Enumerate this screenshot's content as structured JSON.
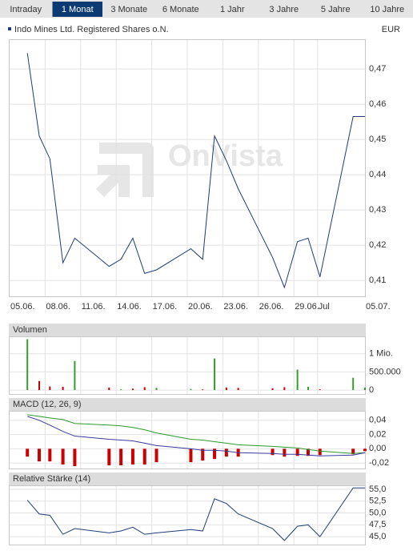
{
  "tabs": {
    "items": [
      "Intraday",
      "1 Monat",
      "3 Monate",
      "6 Monate",
      "1 Jahr",
      "3 Jahre",
      "5 Jahre",
      "10 Jahre"
    ],
    "active": 1
  },
  "instrument": {
    "name": "Indo Mines Ltd. Registered Shares o.N.",
    "currency": "EUR"
  },
  "chart_data": [
    {
      "type": "line",
      "watermark": "OnVista",
      "x": [
        1.5,
        2.5,
        3.4,
        4.5,
        5.5,
        8.4,
        9.4,
        10.4,
        11.4,
        12.4,
        15.3,
        16.3,
        17.3,
        18.3,
        19.3,
        22.2,
        23.2,
        24.3,
        25.2,
        26.2,
        29,
        30
      ],
      "xlim": [
        0,
        30
      ],
      "xticks": [
        {
          "value": 0,
          "label": "05.06."
        },
        {
          "value": 3,
          "label": "08.06."
        },
        {
          "value": 6,
          "label": "11.06."
        },
        {
          "value": 9,
          "label": "14.06."
        },
        {
          "value": 12,
          "label": "17.06."
        },
        {
          "value": 15,
          "label": "20.06."
        },
        {
          "value": 18,
          "label": "23.06."
        },
        {
          "value": 21,
          "label": "26.06."
        },
        {
          "value": 24,
          "label": "29.06."
        },
        {
          "value": 26,
          "label": "Jul"
        },
        {
          "value": 30,
          "label": "05.07."
        }
      ],
      "ylim": [
        0.4055,
        0.4782
      ],
      "yticks": [
        {
          "value": 0.41,
          "label": "0,41"
        },
        {
          "value": 0.42,
          "label": "0,42"
        },
        {
          "value": 0.43,
          "label": "0,43"
        },
        {
          "value": 0.44,
          "label": "0,44"
        },
        {
          "value": 0.45,
          "label": "0,45"
        },
        {
          "value": 0.46,
          "label": "0,46"
        },
        {
          "value": 0.47,
          "label": "0,47"
        }
      ],
      "grid": true,
      "series": [
        {
          "color": "#1d3c78",
          "values": [
            0.4745,
            0.451,
            0.4445,
            0.415,
            0.422,
            0.414,
            0.416,
            0.422,
            0.412,
            0.413,
            0.419,
            0.416,
            0.451,
            0.444,
            0.436,
            0.4165,
            0.408,
            0.421,
            0.422,
            0.411,
            0.4565,
            0.4565
          ]
        }
      ]
    },
    {
      "type": "bar",
      "title": "Volumen",
      "x": [
        1.5,
        2.5,
        3.4,
        4.5,
        5.5,
        8.4,
        9.4,
        10.4,
        11.4,
        12.4,
        15.3,
        16.3,
        17.3,
        18.3,
        19.3,
        22.2,
        23.2,
        24.3,
        25.2,
        26.2,
        29,
        30
      ],
      "xlim": [
        0,
        30
      ],
      "ylim": [
        -108700,
        1456500
      ],
      "yticks": [
        0,
        {
          "value": 500000,
          "label": "500.000"
        },
        {
          "value": 1000000,
          "label": "1 Mio."
        }
      ],
      "grid": true,
      "series": [
        {
          "values": [
            1400000,
            250000,
            100000,
            90000,
            800000,
            70000,
            20000,
            40000,
            80000,
            60000,
            30000,
            20000,
            870000,
            70000,
            60000,
            50000,
            80000,
            565000,
            90000,
            20000,
            340000,
            70000
          ],
          "colors": [
            "#33a02c",
            "#cc0000",
            "#cc0000",
            "#cc0000",
            "#33a02c",
            "#cc0000",
            "#33a02c",
            "#cc0000",
            "#cc0000",
            "#33a02c",
            "#33a02c",
            "#cc0000",
            "#33a02c",
            "#cc0000",
            "#cc0000",
            "#cc0000",
            "#cc0000",
            "#33a02c",
            "#33a02c",
            "#cc0000",
            "#33a02c",
            "#33a02c"
          ]
        }
      ]
    },
    {
      "type": "combo",
      "title": "MACD (12, 26, 9)",
      "x": [
        1.5,
        2.5,
        3.4,
        4.5,
        5.5,
        8.4,
        9.4,
        10.4,
        11.4,
        12.4,
        15.3,
        16.3,
        17.3,
        18.3,
        19.3,
        22.2,
        23.2,
        24.3,
        25.2,
        26.2,
        29,
        30
      ],
      "xlim": [
        0,
        30
      ],
      "ylim": [
        -0.0278,
        0.0522
      ],
      "yticks": [
        {
          "value": -0.02,
          "label": "-0,02"
        },
        {
          "value": 0,
          "label": "0,00"
        },
        {
          "value": 0.02,
          "label": "0,02"
        },
        {
          "value": 0.04,
          "label": "0,04"
        }
      ],
      "grid": true,
      "series": [
        {
          "type": "bar",
          "color": "#cc0000",
          "values": [
            -0.0111,
            -0.0178,
            -0.0178,
            -0.0222,
            -0.0244,
            -0.0233,
            -0.0233,
            -0.0222,
            -0.0222,
            -0.0189,
            -0.0189,
            -0.0167,
            -0.0144,
            -0.0111,
            -0.0111,
            -0.0089,
            -0.0111,
            -0.01,
            -0.01,
            -0.0089,
            -0.0078,
            -0.0033
          ]
        },
        {
          "type": "line",
          "color": "#2e9a2e",
          "values": [
            0.0478,
            0.0456,
            0.0433,
            0.0411,
            0.0356,
            0.0333,
            0.0322,
            0.03,
            0.0267,
            0.0222,
            0.0133,
            0.0122,
            0.01,
            0.0078,
            0.0056,
            0.0033,
            0.0022,
            0.0011,
            -0.0011,
            -0.0033,
            -0.0067,
            -0.0056
          ]
        },
        {
          "type": "line",
          "color": "#3a3aa0",
          "values": [
            0.0456,
            0.04,
            0.0333,
            0.0244,
            0.0178,
            0.0133,
            0.0122,
            0.0111,
            0.0078,
            0.0044,
            0,
            -0.0022,
            -0.0022,
            -0.0033,
            -0.0056,
            -0.0067,
            -0.0078,
            -0.0078,
            -0.0089,
            -0.01,
            -0.0089,
            -0.0056
          ]
        }
      ]
    },
    {
      "type": "line",
      "title": "Relative Stärke (14)",
      "x": [
        1.5,
        2.5,
        3.4,
        4.5,
        5.5,
        8.4,
        9.4,
        10.4,
        11.4,
        12.4,
        15.3,
        16.3,
        17.3,
        18.3,
        19.3,
        22.2,
        23.2,
        24.3,
        25.2,
        26.2,
        29,
        30
      ],
      "xlim": [
        0,
        30
      ],
      "ylim": [
        43.33,
        55.67
      ],
      "yticks": [
        {
          "value": 45,
          "label": "45,0"
        },
        {
          "value": 47.5,
          "label": "47,5"
        },
        {
          "value": 50,
          "label": "50,0"
        },
        {
          "value": 52.5,
          "label": "52,5"
        },
        {
          "value": 55,
          "label": "55,0"
        }
      ],
      "grid": true,
      "series": [
        {
          "color": "#1d3c78",
          "values": [
            52.7,
            49.8,
            49.5,
            45.5,
            46.7,
            45.8,
            46.2,
            47,
            45.5,
            45.8,
            46.5,
            46.2,
            53,
            52,
            49.8,
            46.7,
            44.2,
            47.2,
            47.5,
            45,
            55.3,
            55.3
          ]
        }
      ]
    }
  ]
}
